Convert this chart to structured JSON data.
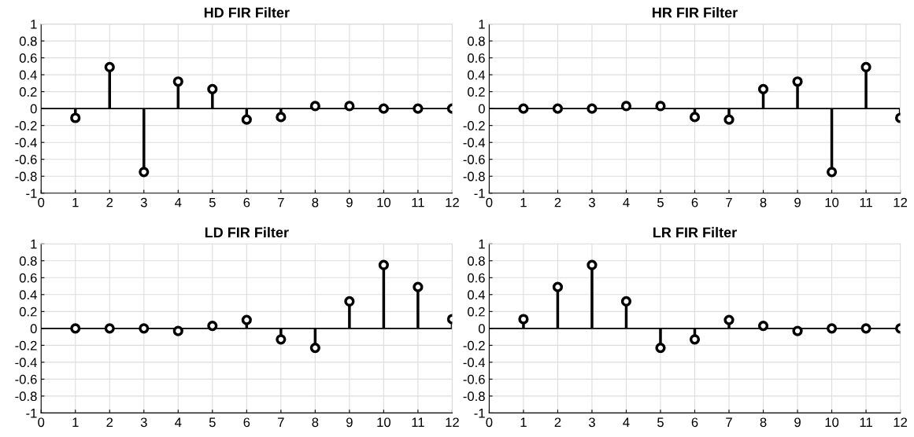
{
  "chart_data": [
    {
      "type": "lollipop",
      "title": "HD FIR Filter",
      "x": [
        1,
        2,
        3,
        4,
        5,
        6,
        7,
        8,
        9,
        10,
        11,
        12
      ],
      "values": [
        -0.11,
        0.49,
        -0.75,
        0.32,
        0.23,
        -0.13,
        -0.1,
        0.03,
        0.03,
        0.0,
        0.0,
        0.0
      ],
      "color": "#000000",
      "marker": "circle",
      "xlim": [
        0,
        12
      ],
      "xticks": [
        0,
        1,
        2,
        3,
        4,
        5,
        6,
        7,
        8,
        9,
        10,
        11,
        12
      ],
      "ylim": [
        -1,
        1
      ],
      "yticks": [
        -1,
        -0.8,
        -0.6,
        -0.4,
        -0.2,
        0,
        0.2,
        0.4,
        0.6,
        0.8,
        1
      ],
      "grid": true
    },
    {
      "type": "lollipop",
      "title": "HR FIR Filter",
      "x": [
        1,
        2,
        3,
        4,
        5,
        6,
        7,
        8,
        9,
        10,
        11,
        12
      ],
      "values": [
        0.0,
        0.0,
        0.0,
        0.03,
        0.03,
        -0.1,
        -0.13,
        0.23,
        0.32,
        -0.75,
        0.49,
        -0.11
      ],
      "color": "#000000",
      "marker": "circle",
      "xlim": [
        0,
        12
      ],
      "xticks": [
        0,
        1,
        2,
        3,
        4,
        5,
        6,
        7,
        8,
        9,
        10,
        11,
        12
      ],
      "ylim": [
        -1,
        1
      ],
      "yticks": [
        -1,
        -0.8,
        -0.6,
        -0.4,
        -0.2,
        0,
        0.2,
        0.4,
        0.6,
        0.8,
        1
      ],
      "grid": true
    },
    {
      "type": "lollipop",
      "title": "LD FIR Filter",
      "x": [
        1,
        2,
        3,
        4,
        5,
        6,
        7,
        8,
        9,
        10,
        11,
        12
      ],
      "values": [
        0.0,
        0.0,
        0.0,
        -0.03,
        0.03,
        0.1,
        -0.13,
        -0.23,
        0.32,
        0.75,
        0.49,
        0.11
      ],
      "color": "#000000",
      "marker": "circle",
      "xlim": [
        0,
        12
      ],
      "xticks": [
        0,
        1,
        2,
        3,
        4,
        5,
        6,
        7,
        8,
        9,
        10,
        11,
        12
      ],
      "ylim": [
        -1,
        1
      ],
      "yticks": [
        -1,
        -0.8,
        -0.6,
        -0.4,
        -0.2,
        0,
        0.2,
        0.4,
        0.6,
        0.8,
        1
      ],
      "grid": true
    },
    {
      "type": "lollipop",
      "title": "LR FIR Filter",
      "x": [
        1,
        2,
        3,
        4,
        5,
        6,
        7,
        8,
        9,
        10,
        11,
        12
      ],
      "values": [
        0.11,
        0.49,
        0.75,
        0.32,
        -0.23,
        -0.13,
        0.1,
        0.03,
        -0.03,
        0.0,
        0.0,
        0.0
      ],
      "color": "#000000",
      "marker": "circle",
      "xlim": [
        0,
        12
      ],
      "xticks": [
        0,
        1,
        2,
        3,
        4,
        5,
        6,
        7,
        8,
        9,
        10,
        11,
        12
      ],
      "ylim": [
        -1,
        1
      ],
      "yticks": [
        -1,
        -0.8,
        -0.6,
        -0.4,
        -0.2,
        0,
        0.2,
        0.4,
        0.6,
        0.8,
        1
      ],
      "grid": true
    }
  ]
}
